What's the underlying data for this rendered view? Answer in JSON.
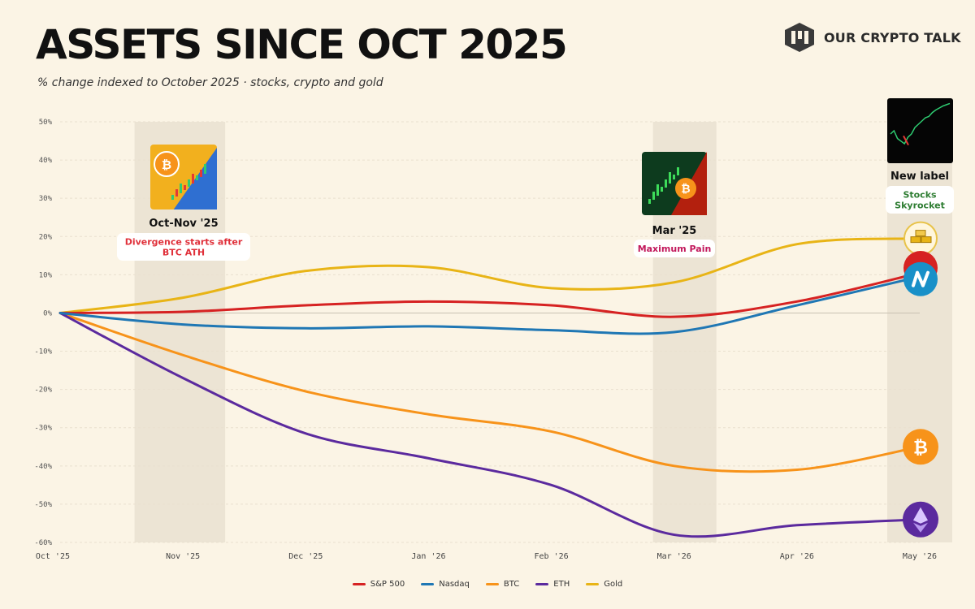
{
  "header": {
    "title": "ASSETS SINCE OCT 2025",
    "subtitle": "% change indexed to October 2025 · stocks, crypto and gold",
    "brand": "OUR CRYPTO TALK"
  },
  "colors": {
    "background": "#fbf4e5",
    "sp500": "#d62222",
    "nasdaq": "#1f77b4",
    "btc": "#f7931a",
    "eth": "#5b2a9e",
    "gold": "#e8b416",
    "band": "#ece4d4"
  },
  "annotations": [
    {
      "title": "Oct-Nov '25",
      "note": "Divergence starts after BTC ATH",
      "note_color": "#e0303a",
      "icon": "bitcoin-candlestick-icon"
    },
    {
      "title": "Mar '25",
      "note": "Maximum Pain",
      "note_color": "#c2185b",
      "icon": "bitcoin-crash-icon"
    },
    {
      "title": "New label",
      "note": "Stocks Skyrocket",
      "note_color": "#2e7d32",
      "icon": "stock-chart-icon"
    }
  ],
  "chart_data": {
    "type": "line",
    "title": "ASSETS SINCE OCT 2025",
    "xlabel": "",
    "ylabel": "",
    "categories": [
      "Oct '25",
      "Nov '25",
      "Dec '25",
      "Jan '26",
      "Feb '26",
      "Mar '26",
      "Apr '26",
      "May '26"
    ],
    "ylim": [
      -60,
      50
    ],
    "yticks": [
      "50%",
      "40%",
      "30%",
      "20%",
      "10%",
      "0%",
      "-10%",
      "-20%",
      "-30%",
      "-40%",
      "-50%",
      "-60%"
    ],
    "grid": true,
    "legend_position": "bottom-center",
    "series": [
      {
        "name": "S&P 500",
        "values": [
          0,
          0.3,
          2,
          3,
          2,
          -1,
          3,
          10.5
        ]
      },
      {
        "name": "Nasdaq",
        "values": [
          0,
          -3,
          -4,
          -3.5,
          -4.5,
          -5,
          2,
          9.5
        ]
      },
      {
        "name": "BTC",
        "values": [
          0,
          -11,
          -20.5,
          -26.5,
          -31,
          -40,
          -41,
          -35
        ]
      },
      {
        "name": "ETH",
        "values": [
          0,
          -17,
          -31.5,
          -38,
          -45,
          -58,
          -55.5,
          -54
        ]
      },
      {
        "name": "Gold",
        "values": [
          0,
          4,
          11,
          12,
          6.5,
          8,
          18,
          19.5
        ]
      }
    ]
  }
}
